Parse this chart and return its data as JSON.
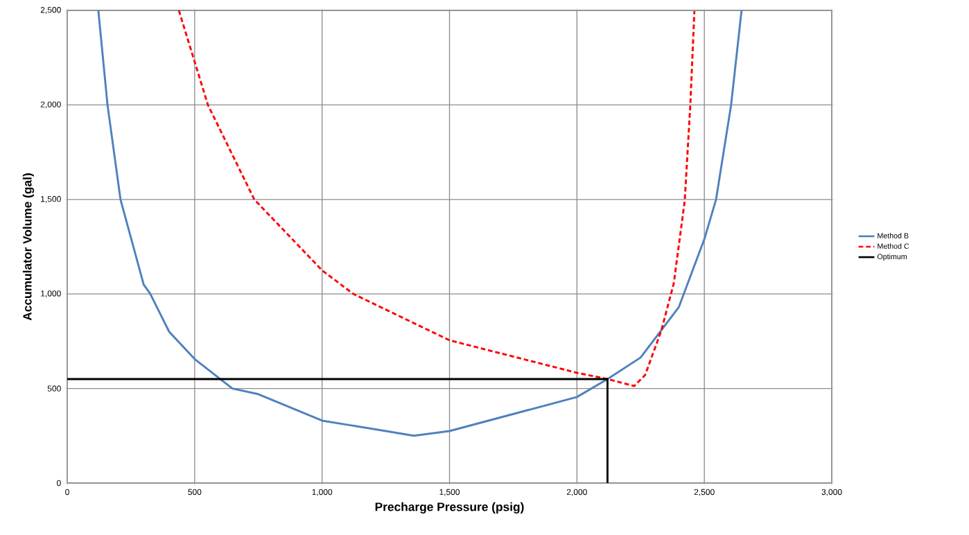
{
  "chart_data": {
    "type": "line",
    "xlabel": "Precharge Pressure (psig)",
    "ylabel": "Accumulator Volume (gal)",
    "xlim": [
      0,
      3000
    ],
    "ylim": [
      0,
      2500
    ],
    "xticks": [
      0,
      500,
      {
        "value": 1000,
        "label": "1,000"
      },
      {
        "value": 1500,
        "label": "1,500"
      },
      {
        "value": 2000,
        "label": "2,000"
      },
      {
        "value": 2500,
        "label": "2,500"
      },
      {
        "value": 3000,
        "label": "3,000"
      }
    ],
    "yticks": [
      0,
      500,
      {
        "value": 1000,
        "label": "1,000"
      },
      {
        "value": 1500,
        "label": "1,500"
      },
      {
        "value": 2000,
        "label": "2,000"
      },
      {
        "value": 2500,
        "label": "2,500"
      }
    ],
    "grid": true,
    "legend": "right",
    "marker": "none",
    "series": [
      {
        "name": "Method B",
        "color": "#4f81bd",
        "line_style": "solid",
        "x": [
          122,
          158,
          209,
          300,
          326,
          400,
          500,
          648,
          750,
          1000,
          1250,
          1360,
          1500,
          2000,
          2120,
          2250,
          2400,
          2500,
          2546,
          2605,
          2646
        ],
        "values": [
          2500,
          2000,
          1500,
          1050,
          1000,
          800,
          656,
          500,
          470,
          330,
          275,
          250,
          275,
          455,
          550,
          664,
          931,
          1290,
          1500,
          2000,
          2500
        ]
      },
      {
        "name": "Method C",
        "color": "#ff0000",
        "line_style": "dashed",
        "x": [
          438,
          552,
          734,
          1000,
          1123,
          1500,
          2000,
          2120,
          2225,
          2268,
          2331,
          2380,
          2423,
          2445,
          2461
        ],
        "values": [
          2500,
          2000,
          1500,
          1125,
          1000,
          755,
          583,
          550,
          513,
          572,
          806,
          1056,
          1492,
          2001,
          2496
        ]
      },
      {
        "name": "Optimum",
        "color": "#000000",
        "line_style": "solid",
        "x": [
          0,
          2120,
          2120
        ],
        "values": [
          550,
          550,
          0
        ]
      }
    ]
  }
}
